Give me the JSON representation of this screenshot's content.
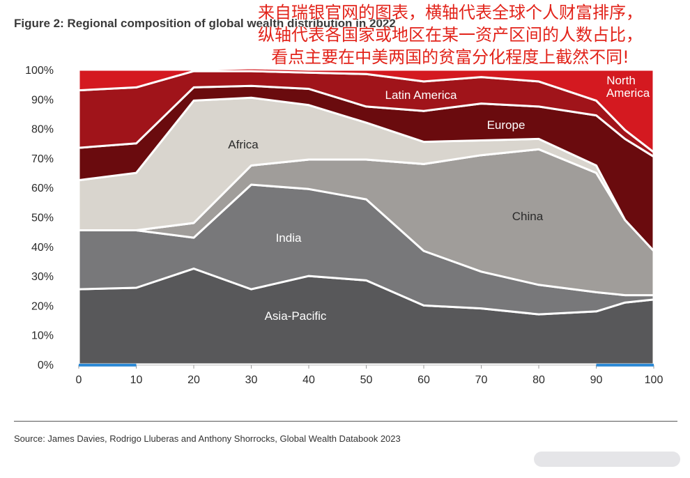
{
  "figure_title": "Figure 2: Regional composition of global wealth distribution in 2022",
  "annotation": "来自瑞银官网的图表，横轴代表全球个人财富排序，纵轴代表各国家或地区在某一资产区间的人数占比，看点主要在中美两国的贫富分化程度上截然不同!",
  "annotation_lines": [
    "来自瑞银官网的图表，横轴代表全球个人财富排序，",
    "纵轴代表各国家或地区在某一资产区间的人数占比，",
    "看点主要在中美两国的贫富分化程度上截然不同!"
  ],
  "source": "Source: James Davies, Rodrigo Lluberas and Anthony Shorrocks, Global Wealth Databook 2023",
  "chart_data": {
    "type": "area",
    "stacked": true,
    "x": [
      0,
      10,
      20,
      30,
      40,
      50,
      60,
      70,
      80,
      90,
      95,
      100
    ],
    "xticks": [
      0,
      10,
      20,
      30,
      40,
      50,
      60,
      70,
      80,
      90,
      100
    ],
    "xlim": [
      0,
      100
    ],
    "yticks": [
      0,
      10,
      20,
      30,
      40,
      50,
      60,
      70,
      80,
      90,
      100
    ],
    "ytick_labels": [
      "0%",
      "10%",
      "20%",
      "30%",
      "40%",
      "50%",
      "60%",
      "70%",
      "80%",
      "90%",
      "100%"
    ],
    "ylim": [
      0,
      100
    ],
    "series": [
      {
        "name": "Asia-Pacific",
        "color": "#58585a",
        "label_color": "#ffffff",
        "values": [
          25.5,
          26,
          32.5,
          25.5,
          30,
          28.5,
          20,
          19,
          17,
          18,
          21,
          22
        ]
      },
      {
        "name": "India",
        "color": "#78787a",
        "label_color": "#ffffff",
        "values": [
          20,
          19.5,
          10.5,
          35.5,
          29.5,
          27.5,
          18.5,
          12.5,
          10,
          6.5,
          2.5,
          1.5
        ]
      },
      {
        "name": "",
        "color": "#a09d9a",
        "label_color": "#ffffff",
        "values": [
          0,
          0,
          5,
          6.5,
          10,
          13.5,
          29.5,
          39.5,
          46,
          40.5,
          25.5,
          15
        ]
      },
      {
        "name": "China",
        "color": "#b9b2a8",
        "label_color": "#2a2a2a",
        "values": [
          0,
          0,
          0,
          0,
          0,
          0,
          0,
          0,
          0,
          0,
          0,
          0
        ]
      },
      {
        "name": "Africa",
        "color": "#d9d5ce",
        "label_color": "#2a2a2a",
        "values": [
          17,
          19.5,
          41.5,
          23,
          18.5,
          12.5,
          7.5,
          5,
          3.5,
          2.5,
          0,
          0
        ]
      },
      {
        "name": "Europe",
        "color": "#6a0b0e",
        "label_color": "#ffffff",
        "values": [
          11,
          10,
          4.5,
          4,
          5.5,
          5.5,
          10.5,
          12.5,
          11,
          17,
          27.5,
          32
        ]
      },
      {
        "name": "Latin America",
        "color": "#a0141a",
        "label_color": "#ffffff",
        "values": [
          19.5,
          19,
          5.5,
          5,
          5.5,
          11,
          10,
          9,
          8.5,
          5,
          3,
          1.5
        ]
      },
      {
        "name": "North America",
        "color": "#d41920",
        "label_color": "#ffffff",
        "values": [
          7,
          6,
          0.5,
          1,
          1,
          1.5,
          4,
          2.5,
          4,
          10.5,
          20.5,
          28
        ]
      }
    ],
    "highlight_ranges": [
      [
        0,
        10
      ],
      [
        90,
        100
      ]
    ]
  }
}
